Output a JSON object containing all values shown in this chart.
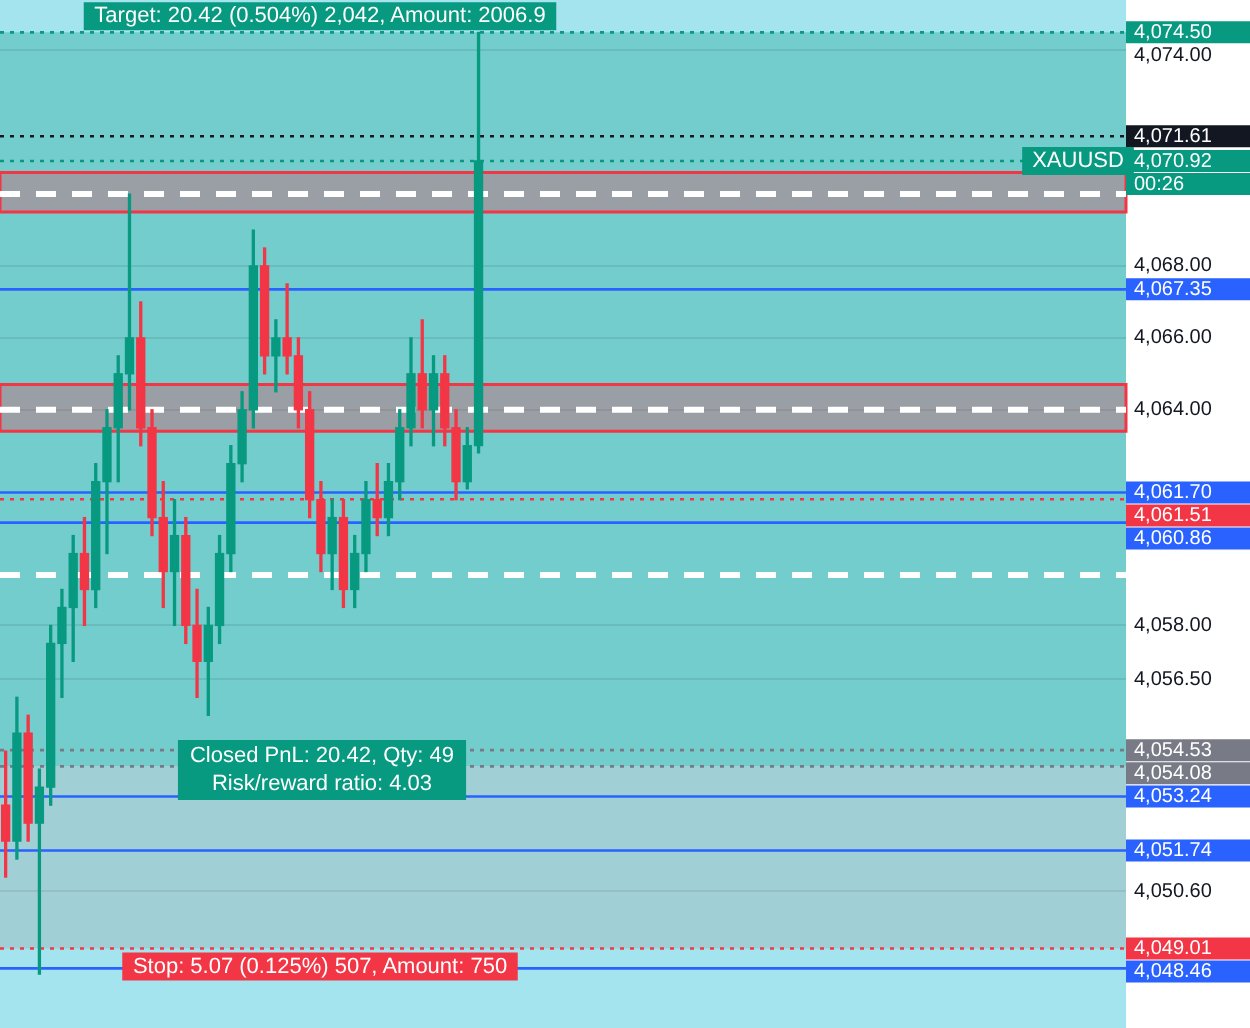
{
  "chart_data": {
    "type": "candlestick",
    "categories": [
      null,
      null,
      null,
      null,
      null,
      null,
      null,
      null,
      null,
      null,
      null,
      null,
      null,
      null,
      null,
      null,
      null,
      null,
      null,
      null,
      null,
      null,
      null,
      null,
      null,
      null,
      null,
      null,
      null,
      null,
      null,
      null,
      null,
      null,
      null,
      null,
      null,
      null,
      null,
      null,
      null,
      null,
      null,
      null,
      null,
      null,
      null,
      null,
      null,
      null,
      null,
      null,
      null,
      null,
      null,
      null,
      null,
      null,
      null,
      null,
      null,
      null,
      null,
      null,
      null,
      null,
      null,
      null,
      null,
      null,
      null,
      null,
      null,
      null,
      null,
      null,
      null,
      null,
      null,
      null,
      null,
      null,
      null,
      null,
      null,
      null,
      null,
      null,
      null,
      null,
      null,
      null,
      null,
      null,
      null,
      null,
      null,
      null,
      null,
      null
    ],
    "ohlc": [
      [
        4053,
        4054.5,
        4051,
        4052
      ],
      [
        4052,
        4056,
        4051.5,
        4055
      ],
      [
        4055,
        4055.5,
        4052,
        4052.5
      ],
      [
        4052.5,
        4054,
        4048.3,
        4053.5
      ],
      [
        4053.5,
        4058,
        4053,
        4057.5
      ],
      [
        4057.5,
        4059,
        4056,
        4058.5
      ],
      [
        4058.5,
        4060.5,
        4057,
        4060
      ],
      [
        4060,
        4061,
        4058,
        4059
      ],
      [
        4059,
        4062.5,
        4058.5,
        4062
      ],
      [
        4062,
        4064,
        4060,
        4063.5
      ],
      [
        4063.5,
        4065.5,
        4062,
        4065
      ],
      [
        4065,
        4070,
        4064,
        4066
      ],
      [
        4066,
        4067,
        4063,
        4063.5
      ],
      [
        4063.5,
        4064,
        4060.5,
        4061
      ],
      [
        4061,
        4062,
        4058.5,
        4059.5
      ],
      [
        4059.5,
        4061.5,
        4058,
        4060.5
      ],
      [
        4060.5,
        4061,
        4057.5,
        4058
      ],
      [
        4058,
        4059,
        4056,
        4057
      ],
      [
        4057,
        4058.5,
        4055.5,
        4058
      ],
      [
        4058,
        4060.5,
        4057.5,
        4060
      ],
      [
        4060,
        4063,
        4059.5,
        4062.5
      ],
      [
        4062.5,
        4064.5,
        4062,
        4064
      ],
      [
        4064,
        4069,
        4063.5,
        4068
      ],
      [
        4068,
        4068.5,
        4065,
        4065.5
      ],
      [
        4065.5,
        4066.5,
        4064.5,
        4066
      ],
      [
        4066,
        4067.5,
        4065,
        4065.5
      ],
      [
        4065.5,
        4066,
        4063.5,
        4064
      ],
      [
        4064,
        4064.5,
        4061,
        4061.5
      ],
      [
        4061.5,
        4062,
        4059.5,
        4060
      ],
      [
        4060,
        4061.5,
        4059,
        4061
      ],
      [
        4061,
        4061.5,
        4058.5,
        4059
      ],
      [
        4059,
        4060.5,
        4058.5,
        4060
      ],
      [
        4060,
        4062,
        4059.5,
        4061.5
      ],
      [
        4061.5,
        4062.5,
        4060.5,
        4061
      ],
      [
        4061,
        4062.5,
        4060.5,
        4062
      ],
      [
        4062,
        4064,
        4061.5,
        4063.5
      ],
      [
        4063.5,
        4066,
        4063,
        4065
      ],
      [
        4065,
        4066.5,
        4063.5,
        4064
      ],
      [
        4064,
        4065.5,
        4063,
        4065
      ],
      [
        4065,
        4065.5,
        4063,
        4063.5
      ],
      [
        4063.5,
        4064,
        4061.5,
        4062
      ],
      [
        4062,
        4063.5,
        4061.8,
        4063
      ],
      [
        4063,
        4074.5,
        4062.8,
        4070.92
      ],
      null,
      null,
      null,
      null,
      null,
      null,
      null,
      null,
      null,
      null,
      null,
      null,
      null,
      null,
      null,
      null,
      null,
      null,
      null,
      null,
      null,
      null,
      null,
      null,
      null,
      null,
      null,
      null,
      null,
      null,
      null,
      null,
      null,
      null,
      null,
      null,
      null,
      null,
      null,
      null,
      null,
      null,
      null,
      null,
      null,
      null,
      null,
      null,
      null,
      null,
      null,
      null,
      null,
      null,
      null,
      null,
      null
    ],
    "colors": [
      "#f23645",
      "#089981",
      "#f23645",
      "#089981",
      "#089981",
      "#089981",
      "#089981",
      "#f23645",
      "#089981",
      "#089981",
      "#089981",
      "#089981",
      "#f23645",
      "#f23645",
      "#f23645",
      "#089981",
      "#f23645",
      "#f23645",
      "#089981",
      "#089981",
      "#089981",
      "#089981",
      "#089981",
      "#f23645",
      "#089981",
      "#f23645",
      "#f23645",
      "#f23645",
      "#f23645",
      "#089981",
      "#f23645",
      "#089981",
      "#089981",
      "#f23645",
      "#089981",
      "#089981",
      "#089981",
      "#f23645",
      "#089981",
      "#f23645",
      "#f23645",
      "#089981",
      "#089981",
      null,
      null,
      null,
      null,
      null,
      null,
      null,
      null,
      null,
      null,
      null,
      null,
      null,
      null,
      null,
      null,
      null,
      null,
      null,
      null,
      null,
      null,
      null,
      null,
      null,
      null,
      null,
      null,
      null,
      null,
      null,
      null,
      null,
      null,
      null,
      null,
      null,
      null,
      null,
      null,
      null,
      null,
      null,
      null,
      null,
      null,
      null,
      null,
      null,
      null,
      null,
      null,
      null,
      null,
      null,
      null,
      null
    ],
    "ylim": [
      4046.8,
      4075.4
    ],
    "yticks": [
      {
        "value": 4074,
        "label": "4,074.00"
      },
      {
        "value": 4068,
        "label": "4,068.00"
      },
      {
        "value": 4066,
        "label": "4,066.00"
      },
      {
        "value": 4064,
        "label": "4,064.00"
      },
      {
        "value": 4058,
        "label": "4,058.00"
      },
      {
        "value": 4056.5,
        "label": "4,056.50"
      },
      {
        "value": 4050.6,
        "label": "4,050.60"
      }
    ],
    "grid": "y",
    "legend": false,
    "tick_labels": "y",
    "bands": [
      {
        "axis": "y",
        "from": 4054.08,
        "to": 4074.5,
        "color": "#089981"
      },
      {
        "axis": "y",
        "from": 4049.01,
        "to": 4054.08,
        "color": "#9e9e9e"
      },
      {
        "axis": "y",
        "from": 4069.5,
        "to": 4070.6,
        "color": "#f23645"
      },
      {
        "axis": "y",
        "from": 4063.4,
        "to": 4064.7,
        "color": "#f23645"
      }
    ],
    "ref_lines": [
      {
        "axis": "y",
        "value": 4074.5,
        "label": "4,074.50",
        "color": "#089981",
        "line_style": "dotted"
      },
      {
        "axis": "y",
        "value": 4071.61,
        "label": "4,071.61",
        "color": "#131722",
        "line_style": "dotted"
      },
      {
        "axis": "y",
        "value": 4070.92,
        "label": "4,070.92",
        "color": "#089981",
        "line_style": "dotted"
      },
      {
        "axis": "y",
        "value": 4070,
        "color": "#ffffff",
        "line_style": "dashed"
      },
      {
        "axis": "y",
        "value": 4067.35,
        "label": "4,067.35",
        "color": "#2962ff",
        "line_style": "solid"
      },
      {
        "axis": "y",
        "value": 4064,
        "color": "#ffffff",
        "line_style": "dashed"
      },
      {
        "axis": "y",
        "value": 4061.7,
        "label": "4,061.70",
        "color": "#2962ff",
        "line_style": "solid"
      },
      {
        "axis": "y",
        "value": 4061.51,
        "label": "4,061.51",
        "color": "#f23645",
        "line_style": "dotted"
      },
      {
        "axis": "y",
        "value": 4060.86,
        "label": "4,060.86",
        "color": "#2962ff",
        "line_style": "solid"
      },
      {
        "axis": "y",
        "value": 4059.4,
        "color": "#ffffff",
        "line_style": "dashed"
      },
      {
        "axis": "y",
        "value": 4054.53,
        "label": "4,054.53",
        "color": "#787b86",
        "line_style": "dotted"
      },
      {
        "axis": "y",
        "value": 4054.08,
        "label": "4,054.08",
        "color": "#787b86",
        "line_style": "dotted"
      },
      {
        "axis": "y",
        "value": 4053.24,
        "label": "4,053.24",
        "color": "#2962ff",
        "line_style": "solid"
      },
      {
        "axis": "y",
        "value": 4051.74,
        "label": "4,051.74",
        "color": "#2962ff",
        "line_style": "solid"
      },
      {
        "axis": "y",
        "value": 4049.01,
        "label": "4,049.01",
        "color": "#f23645",
        "line_style": "dotted"
      },
      {
        "axis": "y",
        "value": 4048.46,
        "label": "4,048.46",
        "color": "#2962ff",
        "line_style": "solid"
      }
    ],
    "annotations": [
      {
        "text": "Target: 20.42 (0.504%) 2,042, Amount: 2006.9",
        "y": 4074.5
      },
      "Closed PnL: 20.42, Qty: 49",
      "Risk/reward ratio: 4.03",
      {
        "text": "Stop: 5.07 (0.125%) 507, Amount: 750",
        "y": 4049.01
      },
      "XAUUSD",
      "00:26"
    ]
  }
}
